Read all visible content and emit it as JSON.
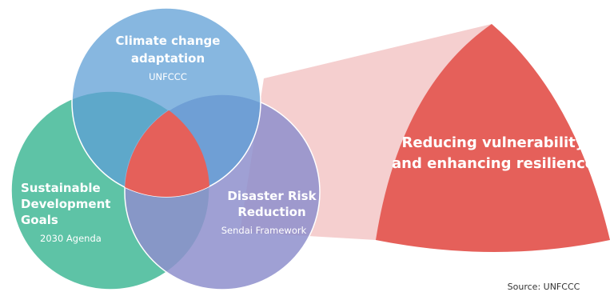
{
  "circles": [
    {
      "title": [
        "Climate change",
        "adaptation"
      ],
      "subtitle": "UNFCCC"
    },
    {
      "title": [
        "Sustainable",
        "Development",
        "Goals"
      ],
      "subtitle": "2030 Agenda"
    },
    {
      "title": [
        "Disaster Risk",
        "Reduction"
      ],
      "subtitle": "Sendai Framework"
    }
  ],
  "focus": {
    "title": [
      "Reducing vulnerability",
      "and enhancing resilience"
    ]
  },
  "source": "Source: UNFCCC"
}
